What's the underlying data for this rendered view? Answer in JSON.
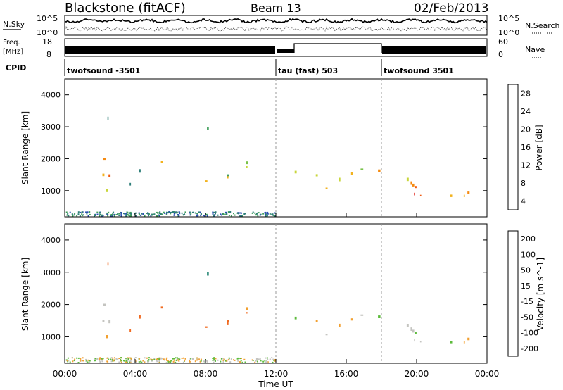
{
  "header": {
    "station": "Blackstone (fitACF)",
    "beam": "Beam 13",
    "date": "02/Feb/2013"
  },
  "top_panels": {
    "nsky_label": "N.Sky",
    "nsky_ticks": [
      "10^5",
      "10^0"
    ],
    "nsearch_label": "N.Search",
    "nsearch_ticks": [
      "10^5",
      "10^0"
    ],
    "freq_label": "Freq.",
    "freq_unit": "[MHz]",
    "freq_ticks": [
      "18",
      "8"
    ],
    "nave_label": "Nave",
    "nave_ticks": [
      "60",
      "0"
    ],
    "cpid_label": "CPID",
    "cpid_segments": [
      {
        "label": "twofsound -3501",
        "start_hour": 0,
        "end_hour": 12
      },
      {
        "label": "tau (fast) 503",
        "start_hour": 12,
        "end_hour": 18
      },
      {
        "label": "twofsound 3501",
        "start_hour": 18,
        "end_hour": 24
      }
    ]
  },
  "power_panel": {
    "ylabel": "Slant Range [km]",
    "yticks": [
      "4000",
      "3000",
      "2000",
      "1000"
    ],
    "colorbar_label": "Power [dB]",
    "colorbar_ticks": [
      "28",
      "24",
      "20",
      "16",
      "12",
      "8",
      "4"
    ],
    "colors": [
      "#0022ee",
      "#2a4fb0",
      "#2f7f7a",
      "#3f9f5a",
      "#78c24a",
      "#c8d63a",
      "#f2b21e",
      "#f58a10",
      "#f05a10",
      "#e01a10"
    ]
  },
  "velocity_panel": {
    "ylabel": "Slant Range [km]",
    "yticks": [
      "4000",
      "3000",
      "2000",
      "1000"
    ],
    "colorbar_label": "Velocity [m s^-1]",
    "colorbar_ticks": [
      "200",
      "100",
      "50",
      "15",
      "-15",
      "-50",
      "-100",
      "-200"
    ],
    "colors": [
      "#1a1aa0",
      "#2b5fc0",
      "#2e8a7a",
      "#5dbb3c",
      "#c4c4c0",
      "#f2a030",
      "#f06a20",
      "#e02a10"
    ]
  },
  "time_axis": {
    "ticks": [
      "00:00",
      "04:00",
      "08:00",
      "12:00",
      "16:00",
      "20:00",
      "00:00"
    ],
    "label": "Time UT"
  },
  "chart_data": {
    "type": "heatmap",
    "title": "Blackstone (fitACF) Beam 13 02/Feb/2013",
    "xlabel": "Time UT",
    "ylabel": "Slant Range [km]",
    "xlim_hours": [
      0,
      24
    ],
    "ylim_km": [
      180,
      4500
    ],
    "panels": [
      {
        "name": "Power",
        "units": "dB",
        "range": [
          0,
          30
        ]
      },
      {
        "name": "Velocity",
        "units": "m s^-1",
        "range": [
          -250,
          250
        ]
      }
    ],
    "echo_regions": [
      {
        "start_hour": 0.0,
        "end_hour": 2.6,
        "range_km_low": 700,
        "range_km_high": 2100,
        "power_db": 18,
        "velocity": -10
      },
      {
        "start_hour": 1.2,
        "end_hour": 2.6,
        "range_km_low": 2600,
        "range_km_high": 3400,
        "power_db": 6,
        "velocity": -60
      },
      {
        "start_hour": 3.5,
        "end_hour": 5.3,
        "range_km_low": 800,
        "range_km_high": 1900,
        "power_db": 6,
        "velocity": -90
      },
      {
        "start_hour": 5.3,
        "end_hour": 10.5,
        "range_km_low": 1300,
        "range_km_high": 2300,
        "power_db": 14,
        "velocity": -70
      },
      {
        "start_hour": 7.5,
        "end_hour": 10.5,
        "range_km_low": 2900,
        "range_km_high": 3100,
        "power_db": 5,
        "velocity": 40
      },
      {
        "start_hour": 12.5,
        "end_hour": 18.0,
        "range_km_low": 900,
        "range_km_high": 2000,
        "power_db": 18,
        "velocity": -5
      },
      {
        "start_hour": 18.0,
        "end_hour": 24.0,
        "range_km_low": 500,
        "range_km_high": 1800,
        "power_db": 22,
        "velocity": -5
      }
    ]
  }
}
